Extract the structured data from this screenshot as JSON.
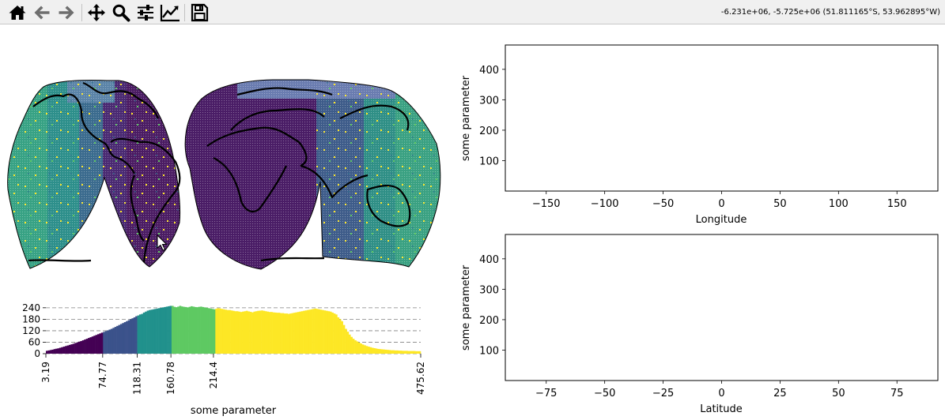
{
  "toolbar": {
    "buttons": [
      {
        "name": "home-button",
        "icon": "home-icon",
        "tooltip": "Reset original view"
      },
      {
        "name": "back-button",
        "icon": "arrow-left-icon",
        "tooltip": "Back to previous view"
      },
      {
        "name": "forward-button",
        "icon": "arrow-right-icon",
        "tooltip": "Forward to next view"
      },
      {
        "name": "pan-button",
        "icon": "move-arrows-icon",
        "tooltip": "Pan axes"
      },
      {
        "name": "zoom-button",
        "icon": "magnifier-icon",
        "tooltip": "Zoom to rectangle"
      },
      {
        "name": "subplots-button",
        "icon": "sliders-icon",
        "tooltip": "Configure subplots"
      },
      {
        "name": "customize-button",
        "icon": "line-chart-icon",
        "tooltip": "Edit axis, curve and image parameters"
      },
      {
        "name": "save-button",
        "icon": "floppy-disk-icon",
        "tooltip": "Save the figure"
      }
    ],
    "coordinates": "-6.231e+06, -5.725e+06 (51.811165°S, 53.962895°W)"
  },
  "colors": {
    "viridis_dark": "#440154",
    "viridis_blue": "#3b528b",
    "viridis_teal": "#21918c",
    "viridis_green": "#5ec962",
    "viridis_yellow": "#fde725",
    "coastline": "#000000"
  },
  "map": {
    "projection": "interrupted goode homolosine",
    "icon": "mouse-pointer-icon"
  },
  "chart_data": [
    {
      "type": "bar",
      "name": "histogram",
      "xlabel": "some parameter",
      "ylabel": "",
      "xlim": [
        3.19,
        475.62
      ],
      "ylim": [
        0,
        260
      ],
      "yticks": [
        0,
        60,
        120,
        180,
        240
      ],
      "xticks": [
        "3.19",
        "74.77",
        "118.31",
        "160.78",
        "214.4",
        "475.62"
      ],
      "grid": "horizontal dashed",
      "class_breaks": [
        3.19,
        74.77,
        118.31,
        160.78,
        214.4,
        475.62
      ],
      "class_colors": [
        "#440154",
        "#3b528b",
        "#21918c",
        "#5ec962",
        "#fde725"
      ],
      "bin_width": 2.4,
      "values": [
        15,
        17,
        19,
        21,
        24,
        26,
        28,
        31,
        34,
        37,
        40,
        43,
        46,
        49,
        52,
        56,
        59,
        63,
        66,
        70,
        74,
        78,
        82,
        86,
        90,
        94,
        98,
        102,
        106,
        110,
        114,
        118,
        122,
        126,
        130,
        135,
        140,
        145,
        150,
        155,
        160,
        165,
        170,
        175,
        180,
        185,
        190,
        196,
        200,
        205,
        208,
        215,
        220,
        225,
        228,
        230,
        232,
        234,
        236,
        238,
        240,
        242,
        244,
        246,
        248,
        250,
        250,
        245,
        243,
        246,
        250,
        247,
        245,
        244,
        242,
        245,
        248,
        246,
        244,
        243,
        245,
        246,
        244,
        242,
        240,
        238,
        236,
        234,
        232,
        235,
        238,
        236,
        234,
        232,
        230,
        228,
        228,
        226,
        224,
        222,
        222,
        220,
        218,
        220,
        222,
        224,
        221,
        219,
        216,
        220,
        222,
        224,
        225,
        226,
        224,
        222,
        220,
        218,
        218,
        216,
        215,
        214,
        214,
        212,
        212,
        210,
        210,
        208,
        210,
        212,
        214,
        216,
        218,
        220,
        222,
        224,
        226,
        228,
        230,
        232,
        234,
        236,
        234,
        232,
        230,
        228,
        226,
        224,
        222,
        220,
        215,
        210,
        205,
        190,
        180,
        170,
        150,
        130,
        115,
        100,
        88,
        78,
        70,
        64,
        58,
        53,
        48,
        44,
        40,
        37,
        34,
        31,
        29,
        27,
        25,
        24,
        23,
        22,
        21,
        20,
        19,
        18,
        18,
        17,
        17,
        16,
        16,
        15,
        15,
        15,
        14,
        14,
        14,
        14,
        13,
        13,
        13,
        13,
        13,
        12,
        12,
        12,
        12,
        12,
        12
      ]
    },
    {
      "type": "scatter",
      "name": "longitude-profile",
      "xlabel": "Longitude",
      "ylabel": "some parameter",
      "xlim": [
        -185,
        185
      ],
      "ylim": [
        0,
        480
      ],
      "xticks": [
        -150,
        -100,
        -50,
        0,
        50,
        100,
        150
      ],
      "yticks": [
        100,
        200,
        300,
        400
      ],
      "x": [],
      "y": []
    },
    {
      "type": "scatter",
      "name": "latitude-profile",
      "xlabel": "Latitude",
      "ylabel": "some parameter",
      "xlim": [
        -92.5,
        92.5
      ],
      "ylim": [
        0,
        480
      ],
      "xticks": [
        -75,
        -50,
        -25,
        0,
        25,
        50,
        75
      ],
      "yticks": [
        100,
        200,
        300,
        400
      ],
      "x": [],
      "y": []
    }
  ]
}
